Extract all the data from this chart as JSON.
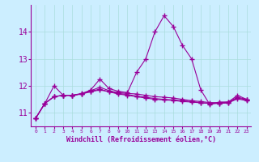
{
  "x": [
    0,
    1,
    2,
    3,
    4,
    5,
    6,
    7,
    8,
    9,
    10,
    11,
    12,
    13,
    14,
    15,
    16,
    17,
    18,
    19,
    20,
    21,
    22,
    23
  ],
  "line1": [
    10.8,
    11.35,
    12.0,
    11.65,
    11.65,
    11.7,
    11.85,
    12.25,
    11.9,
    11.8,
    11.75,
    12.5,
    13.0,
    14.0,
    14.6,
    14.2,
    13.5,
    13.0,
    11.85,
    11.3,
    11.4,
    11.4,
    11.65,
    11.5
  ],
  "line2": [
    10.8,
    11.35,
    11.6,
    11.65,
    11.65,
    11.72,
    11.82,
    11.95,
    11.82,
    11.75,
    11.72,
    11.7,
    11.65,
    11.6,
    11.58,
    11.55,
    11.5,
    11.45,
    11.42,
    11.38,
    11.38,
    11.4,
    11.58,
    11.5
  ],
  "line3": [
    10.8,
    11.35,
    11.6,
    11.65,
    11.65,
    11.7,
    11.8,
    11.88,
    11.78,
    11.72,
    11.68,
    11.62,
    11.58,
    11.53,
    11.5,
    11.48,
    11.45,
    11.42,
    11.38,
    11.35,
    11.35,
    11.38,
    11.55,
    11.48
  ],
  "line4": [
    10.8,
    11.35,
    11.6,
    11.65,
    11.65,
    11.7,
    11.78,
    11.85,
    11.78,
    11.7,
    11.65,
    11.6,
    11.55,
    11.5,
    11.48,
    11.46,
    11.42,
    11.4,
    11.37,
    11.35,
    11.35,
    11.37,
    11.52,
    11.45
  ],
  "line_color": "#990099",
  "bg_color": "#cceeff",
  "grid_color": "#aadddd",
  "xlabel": "Windchill (Refroidissement éolien,°C)",
  "xlim": [
    -0.5,
    23.5
  ],
  "ylim": [
    10.5,
    15.0
  ],
  "yticks": [
    11,
    12,
    13,
    14
  ],
  "xticks": [
    0,
    1,
    2,
    3,
    4,
    5,
    6,
    7,
    8,
    9,
    10,
    11,
    12,
    13,
    14,
    15,
    16,
    17,
    18,
    19,
    20,
    21,
    22,
    23
  ]
}
